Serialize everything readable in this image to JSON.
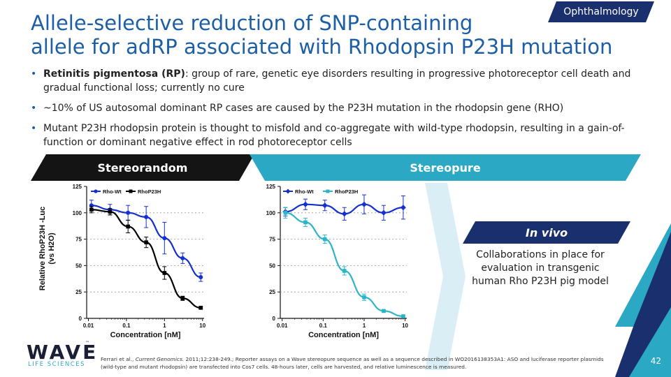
{
  "tag": {
    "label": "Ophthalmology"
  },
  "title": {
    "line1": "Allele-selective reduction of SNP-containing",
    "line2": "allele for adRP associated with Rhodopsin P23H mutation"
  },
  "bullets": [
    {
      "bold": "Retinitis pigmentosa (RP)",
      "text": ": group of rare, genetic eye disorders resulting in progressive photoreceptor cell death and gradual functional loss; currently no cure"
    },
    {
      "text": "~10% of US autosomal dominant RP cases are caused by the P23H mutation in the rhodopsin gene (RHO)"
    },
    {
      "text": "Mutant P23H rhodopsin protein is thought to misfold and co-aggregate with wild-type rhodopsin, resulting in a gain-of-function or dominant negative effect in rod photoreceptor cells"
    }
  ],
  "banners": {
    "left": "Stereorandom",
    "right": "Stereopure",
    "invivo": "In vivo"
  },
  "invivo_text": "Collaborations in place for evaluation in transgenic human Rho P23H pig model",
  "logo": {
    "wave": "WAVE",
    "tm": "™",
    "sub": "LIFE SCIENCES"
  },
  "footnote": {
    "prefix": "Ferrari et al., ",
    "journal": "Current Genomics.",
    "rest": " 2011;12:238-249.; Reporter assays on a Wave stereopure sequence as well as a sequence described in WO2016138353A1: ASO and luciferase reporter plasmids (wild-type and mutant rhodopsin) are transfected into Cos7 cells. 48-hours later, cells are harvested, and relative luminescence is measured."
  },
  "page_number": "42",
  "colors": {
    "title": "#1c5fa6",
    "banner_dark": "#141414",
    "teal": "#2aa8c4",
    "navy": "#1a2f6e",
    "rho_wt": "#1530d0",
    "rho_p23h_left": "#000000",
    "rho_p23h_right": "#2bb6c8"
  },
  "chart_data": [
    {
      "type": "line",
      "ylabel": "Relative RhoP23H -Luc\n(vs H2O)",
      "xlabel": "Concentration [nM]",
      "xscale": "log",
      "x_ticks": [
        "0.01",
        "0.1",
        "1",
        "10"
      ],
      "y_ticks": [
        "0",
        "25",
        "50",
        "75",
        "100",
        "125"
      ],
      "ylim": [
        0,
        125
      ],
      "series": [
        {
          "name": "Rho-Wt",
          "x": [
            0.012,
            0.037,
            0.11,
            0.33,
            1.0,
            3.0,
            9.0
          ],
          "y": [
            107,
            103,
            100,
            96,
            76,
            57,
            39
          ],
          "err": [
            5,
            5,
            7,
            10,
            15,
            5,
            4
          ]
        },
        {
          "name": "RhoP23H",
          "x": [
            0.012,
            0.037,
            0.11,
            0.33,
            1.0,
            3.0,
            9.0
          ],
          "y": [
            103,
            101,
            87,
            72,
            43,
            19,
            10
          ],
          "err": [
            3,
            3,
            6,
            5,
            6,
            2,
            1
          ]
        }
      ]
    },
    {
      "type": "line",
      "xlabel": "Concentration [nM]",
      "xscale": "log",
      "x_ticks": [
        "0.01",
        "0.1",
        "1",
        "10"
      ],
      "y_ticks": [
        "0",
        "25",
        "50",
        "75",
        "100",
        "125"
      ],
      "ylim": [
        0,
        125
      ],
      "series": [
        {
          "name": "Rho-Wt",
          "x": [
            0.012,
            0.037,
            0.11,
            0.33,
            1.0,
            3.0,
            9.0
          ],
          "y": [
            101,
            108,
            107,
            99,
            108,
            100,
            105
          ],
          "err": [
            4,
            5,
            5,
            6,
            9,
            7,
            11
          ]
        },
        {
          "name": "RhoP23H",
          "x": [
            0.012,
            0.037,
            0.11,
            0.33,
            1.0,
            3.0,
            9.0
          ],
          "y": [
            100,
            91,
            75,
            45,
            20,
            7,
            2
          ],
          "err": [
            5,
            4,
            4,
            4,
            3,
            1,
            1
          ]
        }
      ]
    }
  ]
}
